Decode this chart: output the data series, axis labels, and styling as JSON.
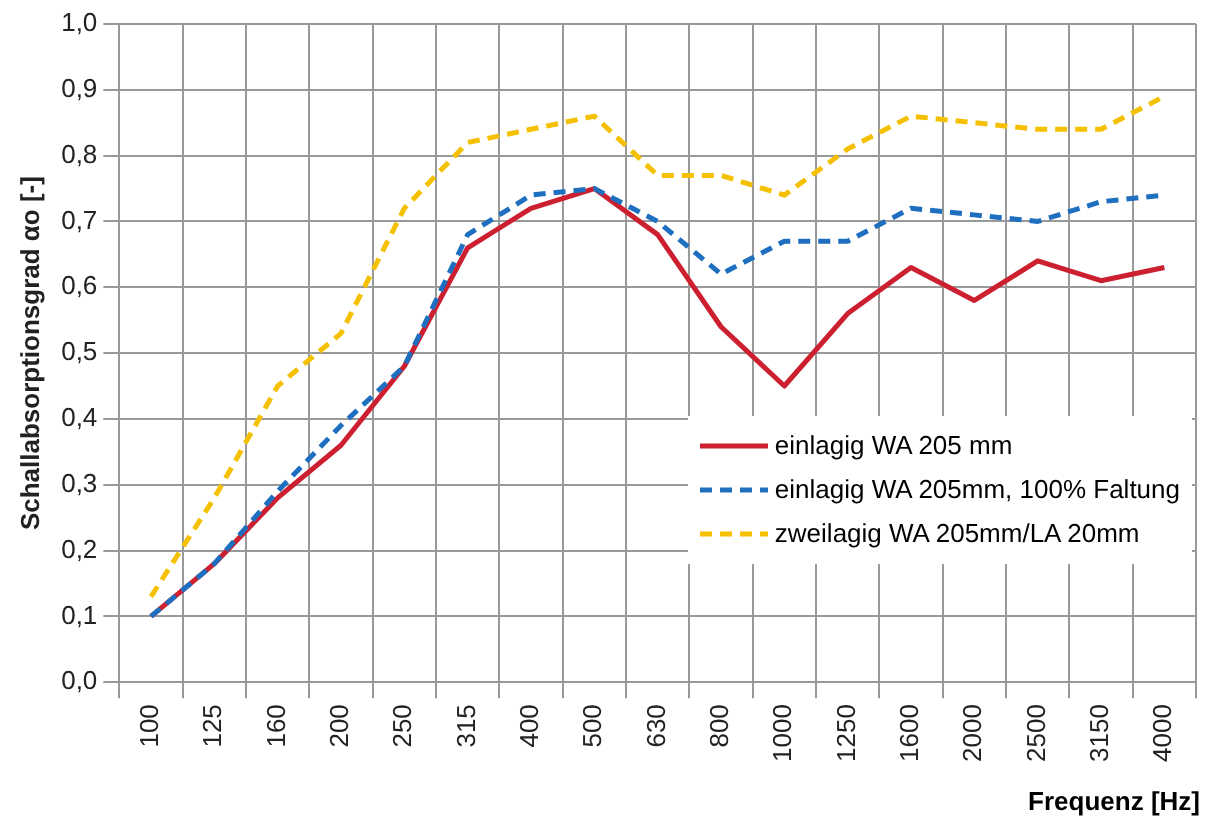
{
  "chart_data": {
    "type": "line",
    "xlabel": "Frequenz [Hz]",
    "ylabel": "Schallabsorptionsgrad αo [-]",
    "categories": [
      "100",
      "125",
      "160",
      "200",
      "250",
      "315",
      "400",
      "500",
      "630",
      "800",
      "1000",
      "1250",
      "1600",
      "2000",
      "2500",
      "3150",
      "4000"
    ],
    "series": [
      {
        "name": "einlagig WA 205 mm",
        "color": "#cc1f2f",
        "line_style": "solid",
        "values": [
          0.1,
          0.18,
          0.28,
          0.36,
          0.48,
          0.66,
          0.72,
          0.75,
          0.68,
          0.54,
          0.45,
          0.56,
          0.63,
          0.58,
          0.64,
          0.61,
          0.63
        ]
      },
      {
        "name": "einlagig WA 205mm, 100% Faltung",
        "color": "#1f6fc0",
        "line_style": "dashed",
        "values": [
          0.1,
          0.18,
          0.29,
          0.39,
          0.48,
          0.68,
          0.74,
          0.75,
          0.7,
          0.62,
          0.67,
          0.67,
          0.72,
          0.71,
          0.7,
          0.73,
          0.74
        ]
      },
      {
        "name": "zweilagig WA 205mm/LA 20mm",
        "color": "#f5c000",
        "line_style": "dashed",
        "values": [
          0.13,
          0.28,
          0.45,
          0.53,
          0.72,
          0.82,
          0.84,
          0.86,
          0.77,
          0.77,
          0.74,
          0.81,
          0.86,
          0.85,
          0.84,
          0.84,
          0.89
        ]
      }
    ],
    "ylim": [
      0,
      1
    ],
    "yticks": [
      {
        "value": 0,
        "label": "0,0"
      },
      {
        "value": 0.1,
        "label": "0,1"
      },
      {
        "value": 0.2,
        "label": "0,2"
      },
      {
        "value": 0.3,
        "label": "0,3"
      },
      {
        "value": 0.4,
        "label": "0,4"
      },
      {
        "value": 0.5,
        "label": "0,5"
      },
      {
        "value": 0.6,
        "label": "0,6"
      },
      {
        "value": 0.7,
        "label": "0,7"
      },
      {
        "value": 0.8,
        "label": "0,8"
      },
      {
        "value": 0.9,
        "label": "0,9"
      },
      {
        "value": 1,
        "label": "1,0"
      }
    ],
    "grid": true,
    "legend": "bottom right",
    "marker": "none"
  }
}
